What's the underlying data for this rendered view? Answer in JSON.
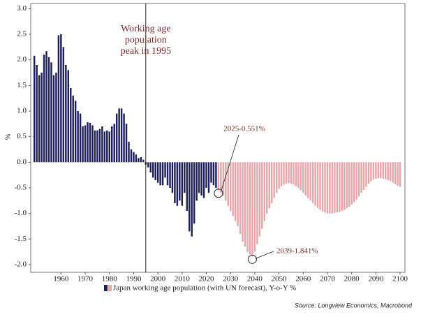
{
  "chart_data": {
    "type": "bar",
    "y_label": "%",
    "xlim": [
      1947.5,
      2102
    ],
    "ylim": [
      -2.15,
      3.1
    ],
    "xticks": [
      1960,
      1970,
      1980,
      1990,
      2000,
      2010,
      2020,
      2030,
      2040,
      2050,
      2060,
      2070,
      2080,
      2090,
      2100
    ],
    "yticks": [
      {
        "value": -2,
        "label": "-2.0"
      },
      -1.5,
      {
        "value": -1,
        "label": "-1.0"
      },
      -0.5,
      {
        "value": 0,
        "label": "0.0"
      },
      0.5,
      {
        "value": 1,
        "label": "1.0"
      },
      1.5,
      {
        "value": 2,
        "label": "2.0"
      },
      2.5,
      {
        "value": 3,
        "label": "3.0"
      }
    ],
    "series": [
      {
        "name": "Japan working age population (with UN forecast), Y-o-Y %",
        "color": "#1c1f5c",
        "x": [
          1949,
          1950,
          1951,
          1952,
          1953,
          1954,
          1955,
          1956,
          1957,
          1958,
          1959,
          1960,
          1961,
          1962,
          1963,
          1964,
          1965,
          1966,
          1967,
          1968,
          1969,
          1970,
          1971,
          1972,
          1973,
          1974,
          1975,
          1976,
          1977,
          1978,
          1979,
          1980,
          1981,
          1982,
          1983,
          1984,
          1985,
          1986,
          1987,
          1988,
          1989,
          1990,
          1991,
          1992,
          1993,
          1994,
          1995,
          1996,
          1997,
          1998,
          1999,
          2000,
          2001,
          2002,
          2003,
          2004,
          2005,
          2006,
          2007,
          2008,
          2009,
          2010,
          2011,
          2012,
          2013,
          2014,
          2015,
          2016,
          2017,
          2018,
          2019,
          2020,
          2021,
          2022,
          2023,
          2024
        ],
        "values": [
          2.08,
          1.9,
          1.7,
          1.75,
          2.1,
          2.17,
          2.05,
          1.95,
          1.7,
          1.75,
          2.48,
          2.5,
          2.25,
          1.9,
          1.8,
          1.45,
          1.3,
          1.2,
          1.0,
          0.95,
          0.7,
          0.72,
          0.78,
          0.77,
          0.72,
          0.62,
          0.62,
          0.65,
          0.7,
          0.6,
          0.62,
          0.6,
          0.7,
          0.75,
          0.95,
          1.05,
          1.05,
          0.95,
          0.75,
          0.4,
          0.25,
          0.2,
          0.15,
          0.08,
          0.1,
          0.05,
          -0.05,
          -0.1,
          -0.2,
          -0.3,
          -0.35,
          -0.4,
          -0.45,
          -0.45,
          -0.3,
          -0.45,
          -0.5,
          -0.6,
          -0.8,
          -0.85,
          -0.75,
          -0.85,
          -0.6,
          -0.95,
          -1.35,
          -1.45,
          -1.2,
          -0.75,
          -0.6,
          -0.65,
          -0.7,
          -0.5,
          -0.6,
          -0.4,
          -0.45,
          -0.5
        ]
      },
      {
        "color": "#e8a6aa",
        "x": [
          2025,
          2026,
          2027,
          2028,
          2029,
          2030,
          2031,
          2032,
          2033,
          2034,
          2035,
          2036,
          2037,
          2038,
          2039,
          2040,
          2041,
          2042,
          2043,
          2044,
          2045,
          2046,
          2047,
          2048,
          2049,
          2050,
          2051,
          2052,
          2053,
          2054,
          2055,
          2056,
          2057,
          2058,
          2059,
          2060,
          2061,
          2062,
          2063,
          2064,
          2065,
          2066,
          2067,
          2068,
          2069,
          2070,
          2071,
          2072,
          2073,
          2074,
          2075,
          2076,
          2077,
          2078,
          2079,
          2080,
          2081,
          2082,
          2083,
          2084,
          2085,
          2086,
          2087,
          2088,
          2089,
          2090,
          2091,
          2092,
          2093,
          2094,
          2095,
          2096,
          2097,
          2098,
          2099,
          2100
        ],
        "values": [
          -0.551,
          -0.6,
          -0.65,
          -0.75,
          -0.85,
          -0.95,
          -1.05,
          -1.15,
          -1.25,
          -1.4,
          -1.55,
          -1.65,
          -1.75,
          -1.8,
          -1.841,
          -1.75,
          -1.6,
          -1.45,
          -1.3,
          -1.15,
          -1.0,
          -0.9,
          -0.8,
          -0.7,
          -0.6,
          -0.52,
          -0.47,
          -0.44,
          -0.42,
          -0.41,
          -0.42,
          -0.44,
          -0.47,
          -0.5,
          -0.55,
          -0.6,
          -0.65,
          -0.7,
          -0.75,
          -0.8,
          -0.85,
          -0.9,
          -0.93,
          -0.96,
          -0.98,
          -1.0,
          -1.0,
          -1.0,
          -0.99,
          -0.98,
          -0.97,
          -0.95,
          -0.93,
          -0.9,
          -0.87,
          -0.83,
          -0.78,
          -0.73,
          -0.67,
          -0.6,
          -0.54,
          -0.48,
          -0.42,
          -0.37,
          -0.34,
          -0.32,
          -0.31,
          -0.31,
          -0.32,
          -0.33,
          -0.35,
          -0.37,
          -0.4,
          -0.43,
          -0.46,
          -0.48
        ]
      }
    ],
    "vline": 1995,
    "peak_annotation": [
      "Working age",
      "population",
      "peak in 1995"
    ],
    "callouts": [
      {
        "label": "2025-0.551%",
        "series": 1,
        "index": 0
      },
      {
        "label": "2039-1.841%",
        "series": 1,
        "index": 14
      }
    ],
    "source": "Source: Longview Economics, Macrobond"
  }
}
